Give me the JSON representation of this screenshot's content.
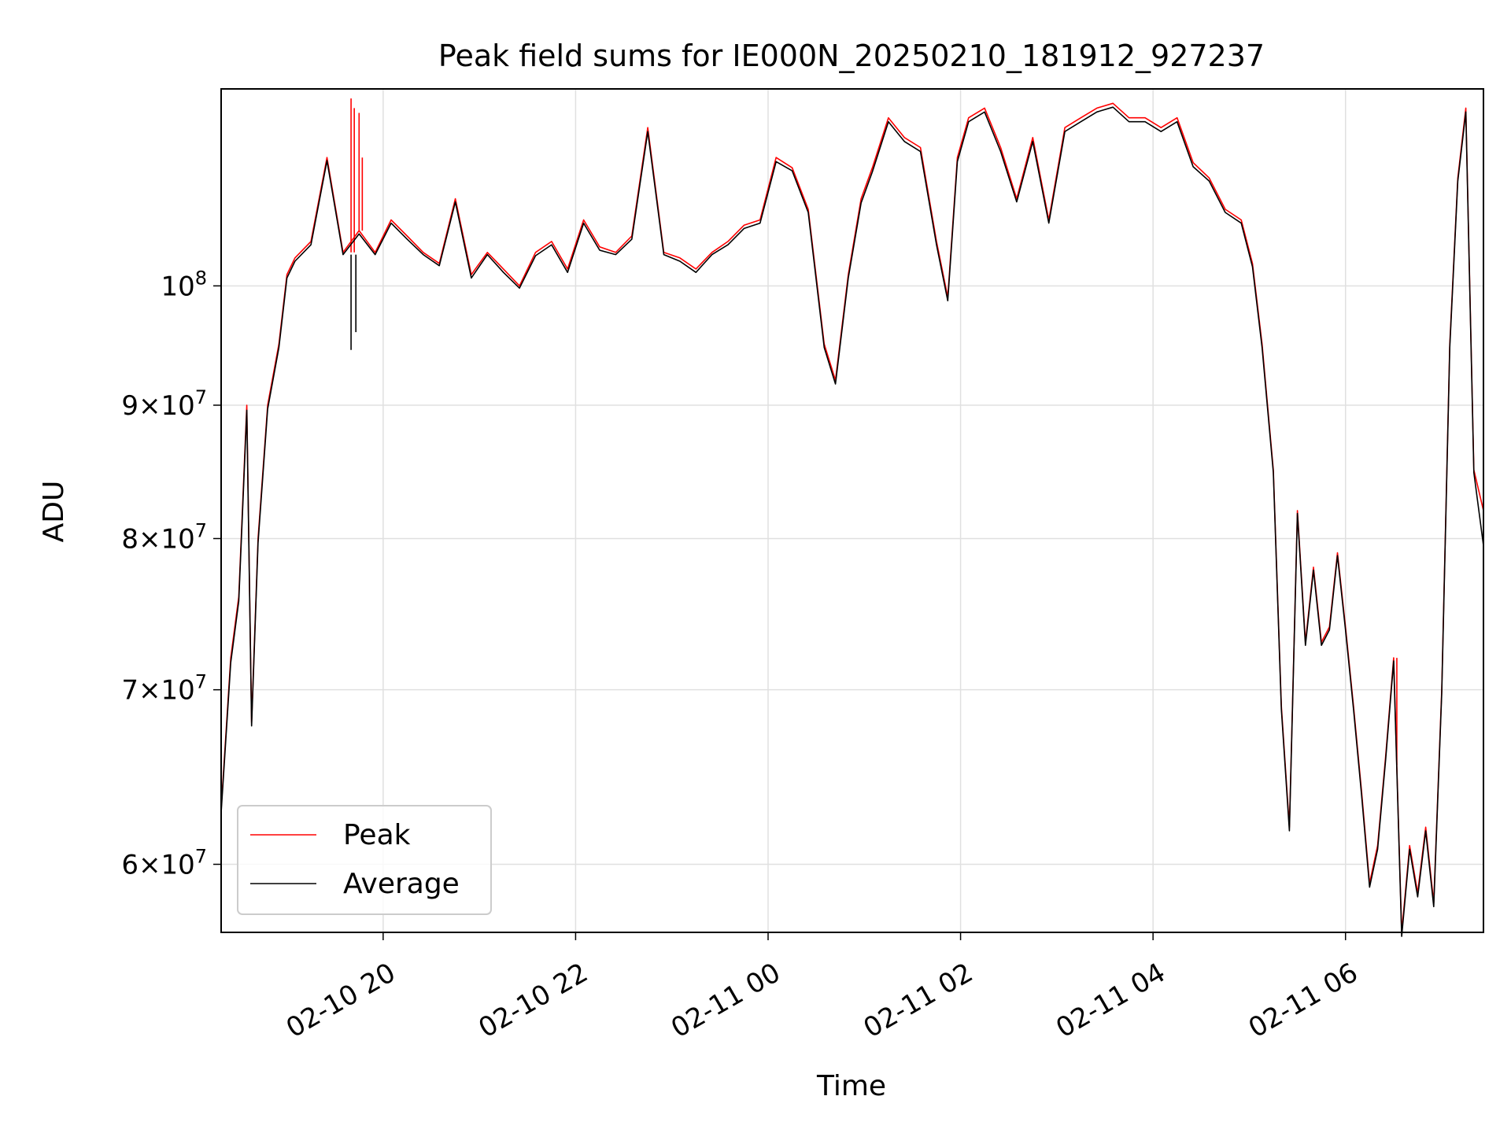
{
  "chart_data": {
    "type": "line",
    "title": "Peak field sums for IE000N_20250210_181912_927237",
    "xlabel": "Time",
    "ylabel": "ADU",
    "yscale": "log",
    "ylim": [
      56500000,
      119000000
    ],
    "xlim": [
      "02-10 18:19",
      "02-11 07:26"
    ],
    "grid": true,
    "legend_position": "lower-left",
    "x_ticks": [
      {
        "t": "02-10 20:00",
        "label": "02-10 20"
      },
      {
        "t": "02-10 22:00",
        "label": "02-10 22"
      },
      {
        "t": "02-11 00:00",
        "label": "02-11 00"
      },
      {
        "t": "02-11 02:00",
        "label": "02-11 02"
      },
      {
        "t": "02-11 04:00",
        "label": "02-11 04"
      },
      {
        "t": "02-11 06:00",
        "label": "02-11 06"
      }
    ],
    "y_ticks": [
      {
        "value": 60000000,
        "mant": "6",
        "exp": "7"
      },
      {
        "value": 70000000,
        "mant": "7",
        "exp": "7"
      },
      {
        "value": 80000000,
        "mant": "8",
        "exp": "7"
      },
      {
        "value": 90000000,
        "mant": "9",
        "exp": "7"
      },
      {
        "value": 100000000,
        "mant": "",
        "exp": "8"
      }
    ],
    "x": [
      "02-10 18:19",
      "02-10 18:25",
      "02-10 18:30",
      "02-10 18:35",
      "02-10 18:38",
      "02-10 18:42",
      "02-10 18:48",
      "02-10 18:55",
      "02-10 19:00",
      "02-10 19:05",
      "02-10 19:15",
      "02-10 19:25",
      "02-10 19:35",
      "02-10 19:45",
      "02-10 19:55",
      "02-10 20:05",
      "02-10 20:15",
      "02-10 20:25",
      "02-10 20:35",
      "02-10 20:45",
      "02-10 20:55",
      "02-10 21:05",
      "02-10 21:15",
      "02-10 21:25",
      "02-10 21:35",
      "02-10 21:45",
      "02-10 21:55",
      "02-10 22:05",
      "02-10 22:15",
      "02-10 22:25",
      "02-10 22:35",
      "02-10 22:45",
      "02-10 22:55",
      "02-10 23:05",
      "02-10 23:15",
      "02-10 23:25",
      "02-10 23:35",
      "02-10 23:45",
      "02-10 23:55",
      "02-11 00:05",
      "02-11 00:15",
      "02-11 00:25",
      "02-11 00:35",
      "02-11 00:42",
      "02-11 00:50",
      "02-11 00:58",
      "02-11 01:05",
      "02-11 01:15",
      "02-11 01:25",
      "02-11 01:35",
      "02-11 01:45",
      "02-11 01:52",
      "02-11 01:58",
      "02-11 02:05",
      "02-11 02:15",
      "02-11 02:25",
      "02-11 02:35",
      "02-11 02:45",
      "02-11 02:55",
      "02-11 03:05",
      "02-11 03:15",
      "02-11 03:25",
      "02-11 03:35",
      "02-11 03:45",
      "02-11 03:55",
      "02-11 04:05",
      "02-11 04:15",
      "02-11 04:25",
      "02-11 04:35",
      "02-11 04:45",
      "02-11 04:55",
      "02-11 05:02",
      "02-11 05:08",
      "02-11 05:15",
      "02-11 05:20",
      "02-11 05:25",
      "02-11 05:30",
      "02-11 05:35",
      "02-11 05:40",
      "02-11 05:45",
      "02-11 05:50",
      "02-11 05:55",
      "02-11 06:00",
      "02-11 06:05",
      "02-11 06:10",
      "02-11 06:15",
      "02-11 06:20",
      "02-11 06:25",
      "02-11 06:30",
      "02-11 06:35",
      "02-11 06:40",
      "02-11 06:45",
      "02-11 06:50",
      "02-11 06:55",
      "02-11 07:00",
      "02-11 07:05",
      "02-11 07:10",
      "02-11 07:15",
      "02-11 07:20",
      "02-11 07:26"
    ],
    "series": [
      {
        "name": "Peak",
        "color": "#ff0000",
        "values": [
          63000000,
          72000000,
          76000000,
          90000000,
          68000000,
          80000000,
          90000000,
          95000000,
          101000000,
          102500000,
          104000000,
          112000000,
          103000000,
          105000000,
          103000000,
          106000000,
          104500000,
          103000000,
          102000000,
          108000000,
          101000000,
          103000000,
          101500000,
          100000000,
          103000000,
          104000000,
          101500000,
          106000000,
          103500000,
          103000000,
          104500000,
          115000000,
          103000000,
          102500000,
          101500000,
          103000000,
          104000000,
          105500000,
          106000000,
          112000000,
          111000000,
          107000000,
          95000000,
          92000000,
          101000000,
          108000000,
          111000000,
          116000000,
          114000000,
          113000000,
          104000000,
          99000000,
          112000000,
          116000000,
          117000000,
          113000000,
          108000000,
          114000000,
          106000000,
          115000000,
          116000000,
          117000000,
          117500000,
          116000000,
          116000000,
          115000000,
          116000000,
          111500000,
          110000000,
          107000000,
          106000000,
          102000000,
          95000000,
          85000000,
          69000000,
          62000000,
          82000000,
          73000000,
          78000000,
          73000000,
          74000000,
          79000000,
          74000000,
          69000000,
          64000000,
          59000000,
          61000000,
          66000000,
          72000000,
          56500000,
          61000000,
          58500000,
          62000000,
          58000000,
          70000000,
          95000000,
          110000000,
          117000000,
          85000000,
          82000000
        ],
        "extra_spikes": [
          {
            "t": "02-10 19:40",
            "value": 118000000
          },
          {
            "t": "02-10 19:42",
            "value": 117000000
          },
          {
            "t": "02-10 19:45",
            "value": 116500000
          },
          {
            "t": "02-10 19:47",
            "value": 112000000
          },
          {
            "t": "02-11 06:32",
            "value": 65500000
          }
        ]
      },
      {
        "name": "Average",
        "color": "#000000",
        "values": [
          62800000,
          71700000,
          75700000,
          89600000,
          67800000,
          79700000,
          89700000,
          94700000,
          100700000,
          102200000,
          103700000,
          111700000,
          102800000,
          104700000,
          102800000,
          105700000,
          104200000,
          102800000,
          101800000,
          107700000,
          100700000,
          102800000,
          101200000,
          99800000,
          102700000,
          103700000,
          101200000,
          105700000,
          103200000,
          102800000,
          104200000,
          114600000,
          102800000,
          102200000,
          101200000,
          102800000,
          103700000,
          105200000,
          105700000,
          111600000,
          110700000,
          106700000,
          94700000,
          91700000,
          100700000,
          107600000,
          110600000,
          115600000,
          113600000,
          112600000,
          103700000,
          98700000,
          111600000,
          115600000,
          116600000,
          112600000,
          107700000,
          113600000,
          105700000,
          114600000,
          115600000,
          116600000,
          117100000,
          115600000,
          115600000,
          114600000,
          115600000,
          111100000,
          109700000,
          106700000,
          105700000,
          101700000,
          94700000,
          84800000,
          68800000,
          61800000,
          81800000,
          72800000,
          77800000,
          72800000,
          73800000,
          78800000,
          73800000,
          68800000,
          63800000,
          58800000,
          60800000,
          65800000,
          71800000,
          56300000,
          60800000,
          58300000,
          61800000,
          57800000,
          69800000,
          94700000,
          109700000,
          116600000,
          84800000,
          79500000
        ],
        "extra_spikes": [
          {
            "t": "02-10 19:40",
            "value": 94500000
          },
          {
            "t": "02-10 19:43",
            "value": 96000000
          }
        ]
      }
    ]
  }
}
